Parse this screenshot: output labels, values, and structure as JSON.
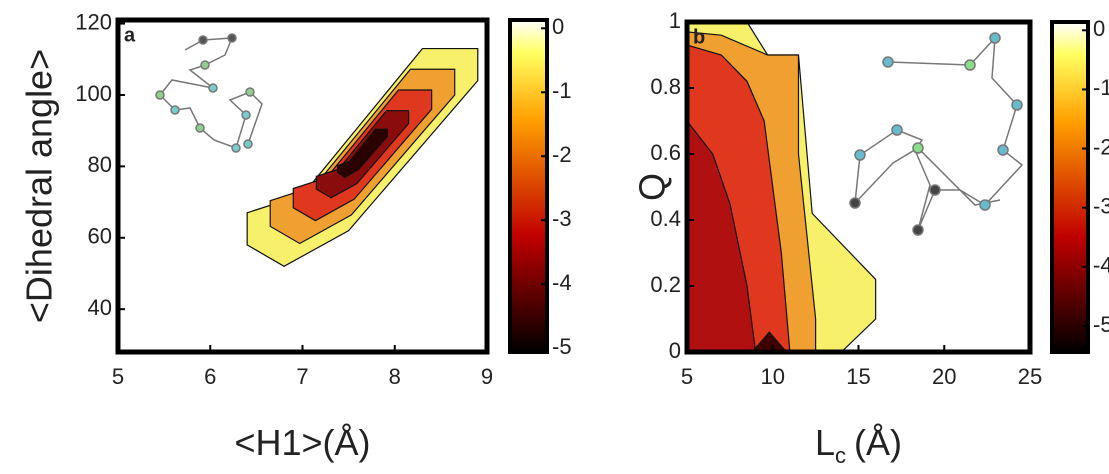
{
  "chart_data": [
    {
      "type": "contour",
      "panel": "a",
      "y_label": "<Dihedral angle>",
      "x_label": "<H1>(Å)",
      "xlim": [
        5,
        9
      ],
      "xticks": [
        5,
        6,
        7,
        8,
        9
      ],
      "ylim": [
        28,
        121
      ],
      "yticks": [
        40,
        60,
        80,
        100,
        120
      ],
      "clim": [
        -5.06,
        0.13
      ],
      "cticks": [
        0,
        -1,
        -2,
        -3,
        -4,
        -5
      ],
      "regions": [
        {
          "level": -0.5,
          "color": "#f7f06a",
          "polygon": [
            [
              6.4,
              58
            ],
            [
              6.4,
              67
            ],
            [
              7.0,
              72
            ],
            [
              8.3,
              113
            ],
            [
              8.9,
              113
            ],
            [
              8.9,
              104
            ],
            [
              7.5,
              62
            ],
            [
              6.8,
              52
            ]
          ]
        },
        {
          "level": -1.5,
          "color": "#f0a030",
          "polygon": [
            [
              6.65,
              63.2
            ],
            [
              6.65,
              70.4
            ],
            [
              7.13,
              74.4
            ],
            [
              8.17,
              107.2
            ],
            [
              8.65,
              107.2
            ],
            [
              8.65,
              100
            ],
            [
              7.53,
              66.4
            ],
            [
              6.97,
              58.4
            ]
          ]
        },
        {
          "level": -2.5,
          "color": "#e0381e",
          "polygon": [
            [
              6.9,
              68.4
            ],
            [
              6.9,
              73.8
            ],
            [
              7.26,
              76.8
            ],
            [
              8.04,
              101.4
            ],
            [
              8.4,
              101.4
            ],
            [
              8.4,
              96
            ],
            [
              7.56,
              70.8
            ],
            [
              7.14,
              64.8
            ]
          ]
        },
        {
          "level": -3.5,
          "color": "#8a0c0c",
          "polygon": [
            [
              7.15,
              73.6
            ],
            [
              7.15,
              77.2
            ],
            [
              7.39,
              79.2
            ],
            [
              7.91,
              95.6
            ],
            [
              8.15,
              95.6
            ],
            [
              8.15,
              92
            ],
            [
              7.59,
              75.2
            ],
            [
              7.31,
              71.2
            ]
          ]
        },
        {
          "level": -4.5,
          "color": "#2a0000",
          "polygon": [
            [
              7.38,
              78.3
            ],
            [
              7.38,
              80.2
            ],
            [
              7.51,
              81.4
            ],
            [
              7.79,
              90.4
            ],
            [
              7.92,
              90.4
            ],
            [
              7.92,
              88.4
            ],
            [
              7.61,
              79.2
            ],
            [
              7.46,
              76.9
            ]
          ]
        }
      ]
    },
    {
      "type": "contour",
      "panel": "b",
      "y_label": "Q",
      "x_label": "L",
      "x_label_sub": "c",
      "x_label_unit": "(Å)",
      "xlim": [
        5,
        25
      ],
      "xticks": [
        5,
        10,
        15,
        20,
        25
      ],
      "ylim": [
        0,
        1
      ],
      "yticks": [
        0,
        0.2,
        0.4,
        0.6,
        0.8,
        1
      ],
      "clim": [
        -5.44,
        0.14
      ],
      "cticks": [
        0,
        -1,
        -2,
        -3,
        -4,
        -5
      ],
      "regions": [
        {
          "level": -0.5,
          "color": "#f7f06a",
          "polygon": [
            [
              5,
              0
            ],
            [
              14,
              0
            ],
            [
              16,
              0.1
            ],
            [
              16,
              0.22
            ],
            [
              12.3,
              0.42
            ],
            [
              11.5,
              0.9
            ],
            [
              9.7,
              0.9
            ],
            [
              8.5,
              1
            ],
            [
              5,
              1
            ]
          ]
        },
        {
          "level": -1.5,
          "color": "#f0a030",
          "polygon": [
            [
              5,
              0
            ],
            [
              12.5,
              0
            ],
            [
              12.5,
              0.1
            ],
            [
              11.5,
              0.6
            ],
            [
              11.5,
              0.9
            ],
            [
              9.7,
              0.9
            ],
            [
              7,
              0.96
            ],
            [
              5,
              0.97
            ]
          ]
        },
        {
          "level": -2.5,
          "color": "#e0381e",
          "polygon": [
            [
              5,
              0
            ],
            [
              11,
              0
            ],
            [
              10.5,
              0.3
            ],
            [
              9.5,
              0.7
            ],
            [
              8.5,
              0.82
            ],
            [
              7,
              0.9
            ],
            [
              5,
              0.93
            ]
          ]
        },
        {
          "level": -3.5,
          "color": "#b01010",
          "polygon": [
            [
              5,
              0
            ],
            [
              9,
              0
            ],
            [
              8.5,
              0.2
            ],
            [
              7.5,
              0.45
            ],
            [
              6.5,
              0.6
            ],
            [
              5,
              0.7
            ]
          ]
        },
        {
          "level": -4.5,
          "color": "#400000",
          "polygon": [
            [
              8.8,
              0
            ],
            [
              10.8,
              0
            ],
            [
              9.8,
              0.06
            ]
          ]
        }
      ]
    }
  ]
}
